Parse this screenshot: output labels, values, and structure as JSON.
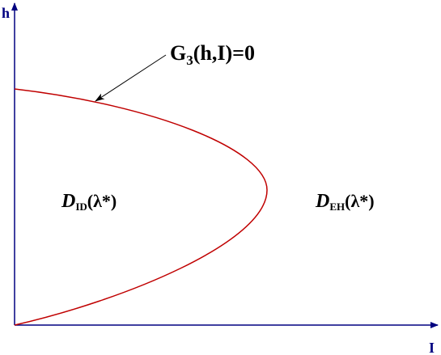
{
  "axes": {
    "y_label": "h",
    "x_label": "I"
  },
  "curve_label": {
    "text": "G",
    "subscript": "3",
    "suffix": "(h,I)=0"
  },
  "regions": [
    {
      "symbol": "D",
      "subscript": "ID",
      "suffix": "(λ*)"
    },
    {
      "symbol": "D",
      "subscript": "EH",
      "suffix": "(λ*)"
    }
  ]
}
